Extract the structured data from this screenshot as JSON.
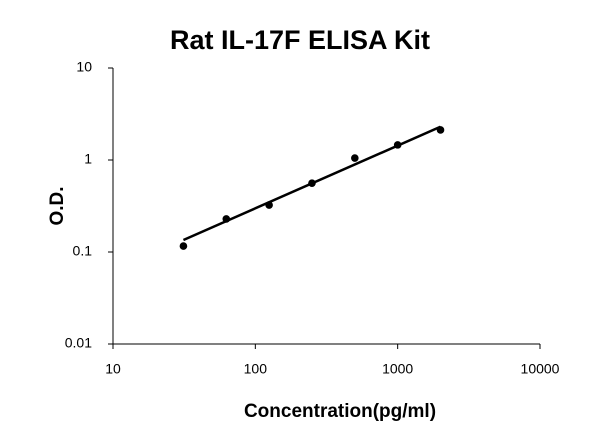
{
  "chart_data": {
    "type": "scatter",
    "title": "Rat IL-17F ELISA Kit",
    "x_label": "Concentration(pg/ml)",
    "y_label": "O.D.",
    "x": [
      31.25,
      62.5,
      125,
      250,
      500,
      1000,
      2000
    ],
    "values": [
      0.116,
      0.229,
      0.324,
      0.56,
      1.05,
      1.46,
      2.12
    ],
    "color": "#000000",
    "fit_line": {
      "x": [
        31.25,
        2000
      ],
      "values": [
        0.135,
        2.3
      ],
      "color": "#000000"
    },
    "xlim": [
      10,
      10000
    ],
    "xticks": [
      10,
      100,
      1000,
      10000
    ],
    "ylim": [
      0.01,
      10
    ],
    "yticks": [
      0.01,
      0.1,
      1,
      10
    ],
    "x_log": true,
    "y_log": true,
    "grid": false
  }
}
